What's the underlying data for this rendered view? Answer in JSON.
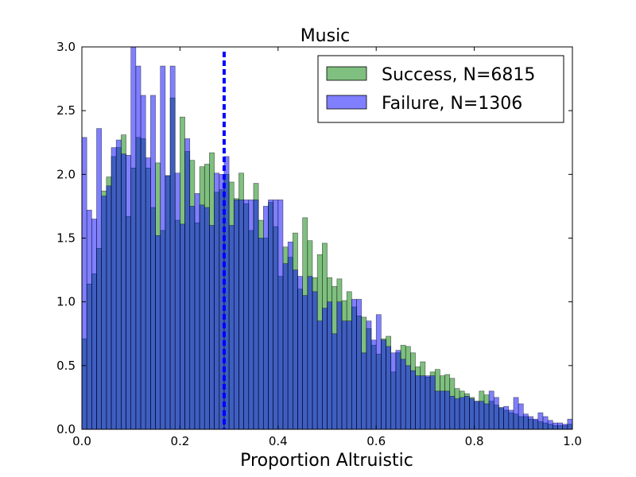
{
  "chart_data": {
    "type": "histogram",
    "title": "Music",
    "xlabel": "Proportion Altruistic",
    "ylabel": "",
    "xlim": [
      0.0,
      1.0
    ],
    "ylim": [
      0.0,
      3.0
    ],
    "x_ticks": [
      "0.0",
      "0.2",
      "0.4",
      "0.6",
      "0.8",
      "1.0"
    ],
    "y_ticks": [
      "0.0",
      "0.5",
      "1.0",
      "1.5",
      "2.0",
      "2.5",
      "3.0"
    ],
    "bin_width": 0.01,
    "legend_position": "top-right",
    "grid": false,
    "vline": {
      "x": 0.29,
      "style": "dashed",
      "color": "#0000ff"
    },
    "series": [
      {
        "name": "Success, N=6815",
        "color": "#008000",
        "alpha": 0.5,
        "values": [
          0.71,
          1.14,
          1.22,
          1.42,
          1.87,
          1.98,
          2.14,
          2.21,
          2.31,
          1.67,
          2.05,
          2.29,
          2.28,
          2.05,
          1.74,
          2.09,
          1.56,
          1.99,
          2.6,
          1.64,
          2.45,
          2.18,
          2.11,
          1.62,
          2.06,
          2.08,
          2.17,
          1.86,
          1.88,
          2.0,
          1.94,
          1.81,
          2.01,
          1.77,
          1.56,
          1.93,
          1.64,
          1.5,
          1.78,
          1.59,
          1.2,
          1.43,
          1.35,
          1.54,
          1.1,
          1.66,
          1.48,
          1.19,
          1.37,
          1.46,
          1.19,
          1.12,
          1.18,
          1.01,
          1.08,
          0.96,
          0.89,
          0.88,
          0.79,
          0.66,
          0.59,
          0.71,
          0.73,
          0.45,
          0.6,
          0.66,
          0.65,
          0.6,
          0.49,
          0.53,
          0.41,
          0.45,
          0.47,
          0.42,
          0.43,
          0.4,
          0.32,
          0.3,
          0.28,
          0.25,
          0.22,
          0.3,
          0.27,
          0.22,
          0.19,
          0.17,
          0.15,
          0.13,
          0.12,
          0.1,
          0.1,
          0.08,
          0.07,
          0.06,
          0.05,
          0.04,
          0.03,
          0.03,
          0.03,
          0.04
        ]
      },
      {
        "name": "Failure, N=1306",
        "color": "#0000ff",
        "alpha": 0.5,
        "values": [
          2.29,
          1.72,
          1.65,
          2.36,
          1.83,
          1.91,
          2.21,
          2.27,
          2.16,
          2.15,
          3.0,
          2.85,
          2.62,
          2.13,
          2.62,
          1.52,
          2.85,
          1.99,
          2.85,
          2.01,
          1.61,
          2.28,
          1.75,
          1.85,
          1.76,
          1.74,
          1.6,
          2.01,
          2.0,
          2.14,
          1.6,
          1.8,
          1.8,
          1.8,
          1.8,
          1.8,
          1.5,
          1.75,
          1.8,
          1.8,
          1.8,
          1.3,
          1.47,
          1.25,
          1.2,
          1.05,
          1.2,
          1.08,
          0.85,
          0.95,
          1.0,
          0.75,
          1.0,
          0.85,
          0.85,
          1.02,
          1.02,
          0.6,
          0.85,
          0.7,
          0.9,
          0.7,
          0.65,
          0.6,
          0.62,
          0.55,
          0.5,
          0.46,
          0.42,
          0.42,
          0.42,
          0.42,
          0.3,
          0.3,
          0.3,
          0.26,
          0.24,
          0.25,
          0.26,
          0.24,
          0.22,
          0.22,
          0.2,
          0.3,
          0.25,
          0.17,
          0.18,
          0.15,
          0.25,
          0.2,
          0.12,
          0.1,
          0.08,
          0.13,
          0.1,
          0.07,
          0.05,
          0.05,
          0.04,
          0.08
        ]
      }
    ]
  }
}
